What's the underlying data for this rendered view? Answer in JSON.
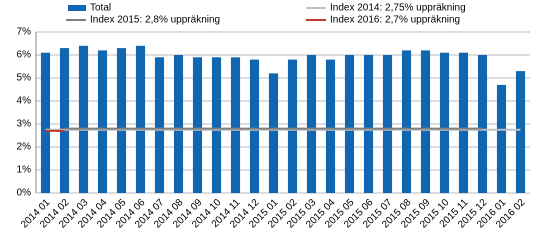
{
  "chart_data": {
    "type": "bar",
    "categories": [
      "2014 01",
      "2014 02",
      "2014 03",
      "2014 04",
      "2014 05",
      "2014 06",
      "2014 07",
      "2014 08",
      "2014 09",
      "2014 10",
      "2014 11",
      "2014 12",
      "2015 01",
      "2015 02",
      "2015 03",
      "2015 04",
      "2015 05",
      "2015 06",
      "2015 07",
      "2015 08",
      "2015 09",
      "2015 10",
      "2015 11",
      "2015 12",
      "2016 01",
      "2016 02"
    ],
    "series": [
      {
        "name": "Total",
        "type": "bar",
        "color": "#1066b0",
        "values": [
          6.1,
          6.3,
          6.4,
          6.2,
          6.3,
          6.4,
          5.9,
          6.0,
          5.9,
          5.9,
          5.9,
          5.8,
          5.2,
          5.8,
          6.0,
          5.8,
          6.0,
          6.0,
          6.0,
          6.2,
          6.2,
          6.1,
          6.1,
          6.0,
          4.7,
          5.3
        ]
      },
      {
        "name": "Index 2014: 2,75% uppräkning",
        "type": "line",
        "color": "#c0c0c0",
        "values": [
          2.75,
          2.75,
          2.75,
          2.75,
          2.75,
          2.75,
          2.75,
          2.75,
          2.75,
          2.75,
          2.75,
          2.75,
          2.75,
          2.75,
          2.75,
          2.75,
          2.75,
          2.75,
          2.75,
          2.75,
          2.75,
          2.75,
          2.75,
          2.75,
          2.75,
          2.75
        ]
      },
      {
        "name": "Index 2015: 2,8% uppräkning",
        "type": "line",
        "color": "#808080",
        "values": [
          null,
          2.8,
          2.8,
          2.8,
          2.8,
          2.8,
          2.8,
          2.8,
          2.8,
          2.8,
          2.8,
          2.8,
          2.8,
          2.8,
          2.8,
          2.8,
          2.8,
          2.8,
          2.8,
          2.8,
          2.8,
          2.8,
          2.8,
          2.8,
          null,
          null
        ]
      },
      {
        "name": "Index 2016: 2,7% uppräkning",
        "type": "line",
        "color": "#c0392b",
        "values": [
          2.7,
          2.7,
          null,
          null,
          null,
          null,
          null,
          null,
          null,
          null,
          null,
          null,
          null,
          null,
          null,
          null,
          null,
          null,
          null,
          null,
          null,
          null,
          null,
          null,
          null,
          null
        ]
      }
    ],
    "ylim": [
      0,
      7
    ],
    "yticks": [
      {
        "value": 0,
        "label": "0%"
      },
      {
        "value": 1,
        "label": "1%"
      },
      {
        "value": 2,
        "label": "2%"
      },
      {
        "value": 3,
        "label": "3%"
      },
      {
        "value": 4,
        "label": "4%"
      },
      {
        "value": 5,
        "label": "5%"
      },
      {
        "value": 6,
        "label": "6%"
      },
      {
        "value": 7,
        "label": "7%"
      }
    ],
    "grid": true
  }
}
